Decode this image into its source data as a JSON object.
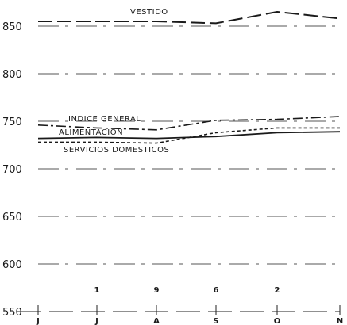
{
  "chart_data": {
    "type": "line",
    "title": "",
    "xlabel": "",
    "ylabel": "",
    "ylim": [
      550,
      860
    ],
    "yticks": [
      850,
      800,
      750,
      700,
      650,
      600,
      550
    ],
    "grid": true,
    "categories": [
      "J",
      "J",
      "A",
      "S",
      "O",
      "N"
    ],
    "year_markers": [
      {
        "category_index": 1,
        "label": "1"
      },
      {
        "category_index": 2,
        "label": "9"
      },
      {
        "category_index": 3,
        "label": "6"
      },
      {
        "category_index": 4,
        "label": "2"
      }
    ],
    "series": [
      {
        "name": "VESTIDO",
        "values": [
          855,
          855,
          855,
          853,
          865,
          858
        ],
        "color": "#1a1a1a",
        "style": "dashed"
      },
      {
        "name": "INDICE GENERAL",
        "values": [
          746,
          743,
          741,
          751,
          752,
          755
        ],
        "color": "#1a1a1a",
        "style": "dashdot"
      },
      {
        "name": "ALIMENTACION",
        "values": [
          732,
          733,
          732,
          734,
          738,
          739
        ],
        "color": "#1a1a1a",
        "style": "solid"
      },
      {
        "name": "SERVICIOS DOMESTICOS",
        "values": [
          728,
          728,
          727,
          738,
          743,
          743
        ],
        "color": "#1a1a1a",
        "style": "dotted"
      }
    ]
  }
}
